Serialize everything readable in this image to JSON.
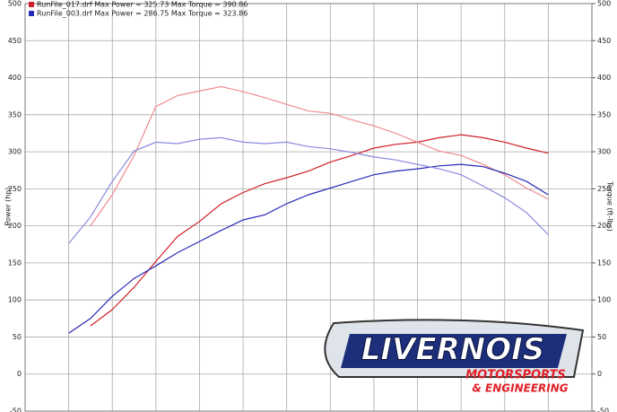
{
  "chart_data": {
    "type": "line",
    "legend": [
      {
        "text": "RunFile_017.drf Max Power = 325.73     Max Torque = 390.86",
        "color": "#d0202a"
      },
      {
        "text": "RunFile_003.drf Max Power = 286.75     Max Torque = 323.86",
        "color": "#2a2ab8"
      }
    ],
    "y_label": "Power (hp)",
    "y2_label": "Torque (ft-lbs)",
    "categories": [
      null,
      null,
      null,
      null,
      null,
      null,
      null,
      null,
      null,
      null,
      null,
      null,
      null,
      null,
      null,
      null,
      null,
      null,
      null,
      null,
      null,
      null,
      null,
      null,
      null,
      null,
      null
    ],
    "series": [
      {
        "color": "#d0202a",
        "values": [
          null,
          null,
          null,
          65,
          87,
          117,
          152,
          186,
          206,
          230,
          245,
          257,
          265,
          274,
          286,
          295,
          305,
          310,
          313,
          319,
          323,
          319,
          313,
          305,
          298,
          null,
          null
        ]
      },
      {
        "color": "#f08a90",
        "axis": "y2",
        "values": [
          null,
          null,
          null,
          200,
          242,
          295,
          361,
          376,
          382,
          388,
          381,
          373,
          364,
          355,
          352,
          343,
          335,
          325,
          313,
          301,
          295,
          283,
          269,
          251,
          236,
          null,
          null
        ]
      },
      {
        "color": "#2a2ab8",
        "values": [
          null,
          null,
          55,
          75,
          105,
          129,
          146,
          164,
          179,
          194,
          208,
          215,
          230,
          242,
          251,
          260,
          269,
          274,
          277,
          281,
          283,
          280,
          271,
          260,
          242,
          null,
          null
        ]
      },
      {
        "color": "#8a8ae0",
        "axis": "y2",
        "values": [
          null,
          null,
          176,
          212,
          260,
          301,
          313,
          311,
          317,
          319,
          313,
          311,
          313,
          307,
          304,
          299,
          293,
          289,
          283,
          277,
          269,
          254,
          238,
          218,
          188,
          null,
          null
        ]
      }
    ],
    "ylim": [
      -50,
      500
    ],
    "yticks": [
      -50,
      0,
      50,
      100,
      150,
      200,
      250,
      300,
      350,
      400,
      450,
      500
    ],
    "y2lim": [
      -50,
      500
    ],
    "y2ticks": [
      -50,
      0,
      50,
      100,
      150,
      200,
      250,
      300,
      350,
      400,
      450,
      500
    ],
    "grid": true
  },
  "logo": {
    "name": "LIVERNOIS",
    "subtitle": "MOTORSPORTS",
    "tagline": "& ENGINEERING"
  }
}
